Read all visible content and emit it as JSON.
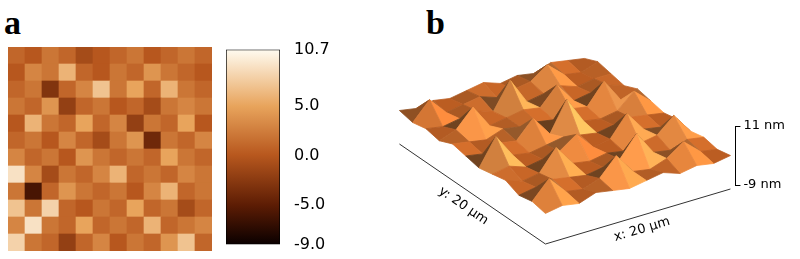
{
  "chart_data": [
    {
      "type": "heatmap",
      "title": "a",
      "tick_labels": false,
      "cells": [
        [
          1,
          0,
          2,
          1,
          -1,
          0,
          1,
          2,
          0,
          1,
          2,
          1
        ],
        [
          0,
          3,
          2,
          6,
          1,
          0,
          2,
          1,
          4,
          2,
          1,
          0
        ],
        [
          1,
          2,
          -3,
          1,
          3,
          7,
          2,
          5,
          1,
          6,
          2,
          1
        ],
        [
          2,
          1,
          4,
          -2,
          1,
          2,
          0,
          1,
          -1,
          2,
          3,
          2
        ],
        [
          0,
          6,
          2,
          1,
          5,
          1,
          3,
          -2,
          2,
          1,
          5,
          0
        ],
        [
          1,
          2,
          0,
          3,
          1,
          -1,
          2,
          4,
          -4,
          2,
          1,
          3
        ],
        [
          3,
          1,
          2,
          0,
          4,
          2,
          1,
          2,
          1,
          5,
          2,
          1
        ],
        [
          9,
          3,
          -1,
          2,
          1,
          3,
          6,
          1,
          2,
          1,
          3,
          2
        ],
        [
          2,
          -6,
          1,
          4,
          2,
          1,
          2,
          0,
          3,
          6,
          1,
          2
        ],
        [
          7,
          2,
          8,
          1,
          0,
          2,
          1,
          5,
          1,
          2,
          -1,
          1
        ],
        [
          3,
          9,
          2,
          1,
          5,
          1,
          2,
          1,
          6,
          1,
          2,
          3
        ],
        [
          8,
          2,
          1,
          -2,
          1,
          3,
          0,
          2,
          1,
          4,
          7,
          1
        ]
      ],
      "colorbar": {
        "range": [
          -9,
          10.7
        ],
        "ticks": [
          {
            "value": 10.7,
            "label": "10.7 nm"
          },
          {
            "value": 5,
            "label": "5.0"
          },
          {
            "value": 0,
            "label": "0.0"
          },
          {
            "value": -5,
            "label": "-5.0"
          },
          {
            "value": -9,
            "label": "-9.0"
          }
        ]
      }
    },
    {
      "type": "surface",
      "title": "b",
      "xlabel": "x: 20 µm",
      "ylabel": "y: 20 µm",
      "zlim": [
        -9,
        11
      ],
      "zticks": [
        {
          "value": 11,
          "label": "11 nm"
        },
        {
          "value": -9,
          "label": "-9 nm"
        }
      ],
      "cells": [
        [
          0,
          1,
          0,
          2,
          1,
          0,
          1,
          2,
          0,
          1,
          0,
          1
        ],
        [
          1,
          7,
          1,
          0,
          2,
          8,
          1,
          0,
          2,
          6,
          1,
          0
        ],
        [
          0,
          1,
          2,
          1,
          0,
          1,
          2,
          9,
          1,
          0,
          2,
          1
        ],
        [
          2,
          0,
          1,
          8,
          1,
          0,
          1,
          0,
          1,
          2,
          7,
          0
        ],
        [
          1,
          2,
          0,
          1,
          2,
          6,
          0,
          1,
          8,
          1,
          0,
          1
        ],
        [
          0,
          9,
          1,
          0,
          1,
          2,
          1,
          0,
          1,
          2,
          1,
          0
        ],
        [
          1,
          0,
          2,
          1,
          7,
          0,
          10,
          1,
          0,
          1,
          6,
          1
        ],
        [
          2,
          1,
          0,
          2,
          1,
          1,
          0,
          2,
          1,
          8,
          0,
          2
        ],
        [
          0,
          2,
          8,
          0,
          1,
          2,
          1,
          7,
          0,
          1,
          2,
          0
        ],
        [
          1,
          0,
          1,
          2,
          0,
          9,
          0,
          1,
          2,
          0,
          1,
          1
        ],
        [
          0,
          6,
          0,
          1,
          2,
          0,
          1,
          2,
          6,
          1,
          0,
          2
        ],
        [
          1,
          0,
          1,
          0,
          1,
          2,
          0,
          1,
          0,
          2,
          1,
          0
        ]
      ]
    }
  ]
}
